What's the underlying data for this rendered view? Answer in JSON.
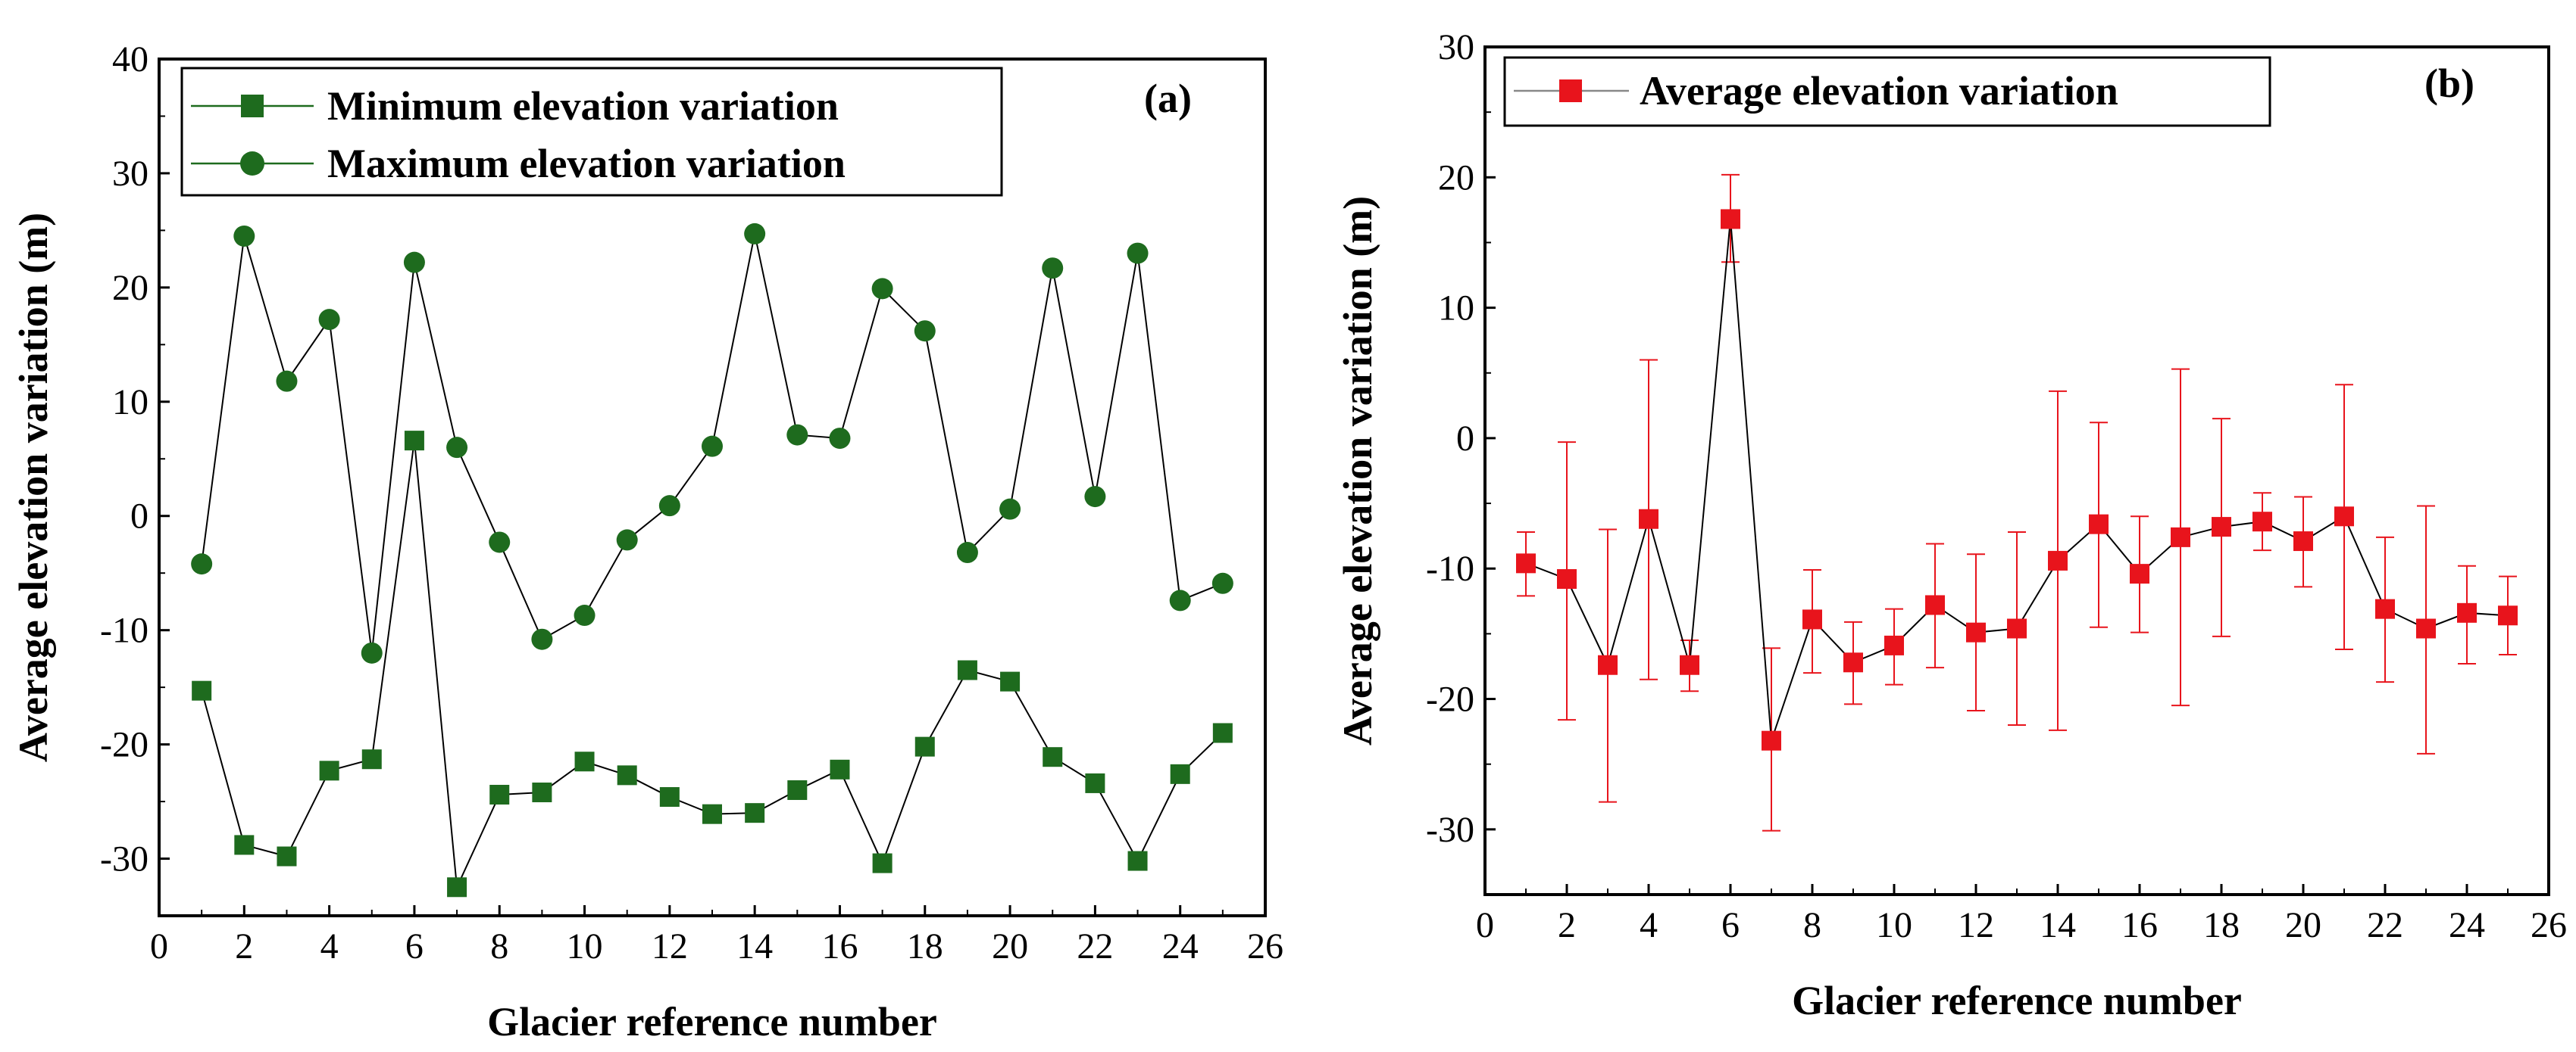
{
  "chart_data": [
    {
      "type": "line",
      "panel_label": "(a)",
      "title": "",
      "xlabel": "Glacier reference  number",
      "ylabel": "Average elevation variation (m)",
      "xlim": [
        0,
        26
      ],
      "ylim": [
        -35,
        40
      ],
      "xticks": [
        "0",
        "2",
        "4",
        "6",
        "8",
        "10",
        "12",
        "14",
        "16",
        "18",
        "20",
        "22",
        "24",
        "26"
      ],
      "yticks": [
        "-30",
        "-20",
        "-10",
        "0",
        "10",
        "20",
        "30",
        "40"
      ],
      "legend_position": "top-left",
      "x": [
        1,
        2,
        3,
        4,
        5,
        6,
        7,
        8,
        9,
        10,
        11,
        12,
        13,
        14,
        15,
        16,
        17,
        18,
        19,
        20,
        21,
        22,
        23,
        24,
        25
      ],
      "series": [
        {
          "name": "Minimum elevation variation",
          "marker": "square",
          "color": "#1e6b1e",
          "values": [
            -15.3,
            -28.8,
            -29.8,
            -22.3,
            -21.3,
            6.6,
            -32.5,
            -24.4,
            -24.2,
            -21.5,
            -22.7,
            -24.6,
            -26.1,
            -26.0,
            -24.0,
            -22.2,
            -30.4,
            -20.2,
            -13.5,
            -14.5,
            -21.1,
            -23.4,
            -30.2,
            -22.6,
            -19.0
          ]
        },
        {
          "name": "Maximum elevation variation",
          "marker": "circle",
          "color": "#1e6b1e",
          "values": [
            -4.2,
            24.5,
            11.8,
            17.2,
            -12.0,
            22.2,
            6.0,
            -2.3,
            -10.8,
            -8.7,
            -2.1,
            0.9,
            6.1,
            24.7,
            7.1,
            6.8,
            19.9,
            16.2,
            -3.2,
            0.6,
            21.7,
            1.7,
            23.0,
            -7.4,
            -5.9
          ]
        }
      ]
    },
    {
      "type": "line",
      "panel_label": "(b)",
      "title": "",
      "xlabel": "Glacier reference  number",
      "ylabel": "Average elevation variation (m)",
      "xlim": [
        0,
        26
      ],
      "ylim": [
        -35,
        30
      ],
      "xticks": [
        "0",
        "2",
        "4",
        "6",
        "8",
        "10",
        "12",
        "14",
        "16",
        "18",
        "20",
        "22",
        "24",
        "26"
      ],
      "yticks": [
        "-30",
        "-20",
        "-10",
        "0",
        "10",
        "20",
        "30"
      ],
      "legend_position": "top-left",
      "x": [
        1,
        2,
        3,
        4,
        5,
        6,
        7,
        8,
        9,
        10,
        11,
        12,
        13,
        14,
        15,
        16,
        17,
        18,
        19,
        20,
        21,
        22,
        23,
        24,
        25
      ],
      "series": [
        {
          "name": "Average elevation variation",
          "marker": "square",
          "color": "#e8141c",
          "line_color": "#000000",
          "values": [
            -9.6,
            -10.8,
            -17.4,
            -6.2,
            -17.4,
            16.8,
            -23.2,
            -13.9,
            -17.2,
            -15.9,
            -12.8,
            -14.9,
            -14.6,
            -9.4,
            -6.6,
            -10.4,
            -7.6,
            -6.8,
            -6.4,
            -7.9,
            -6.0,
            -13.1,
            -14.6,
            -13.4,
            -13.6
          ],
          "error_upper": [
            -7.2,
            -0.3,
            -7.0,
            6.0,
            -15.5,
            20.2,
            -16.1,
            -10.1,
            -14.1,
            -13.1,
            -8.1,
            -8.9,
            -7.2,
            3.6,
            1.2,
            -6.0,
            5.3,
            1.5,
            -4.2,
            -4.5,
            4.1,
            -7.6,
            -5.2,
            -9.8,
            -10.6
          ],
          "error_lower": [
            -12.1,
            -21.6,
            -27.9,
            -18.5,
            -19.4,
            13.5,
            -30.1,
            -18.0,
            -20.4,
            -18.9,
            -17.6,
            -20.9,
            -22.0,
            -22.4,
            -14.5,
            -14.9,
            -20.5,
            -15.2,
            -8.6,
            -11.4,
            -16.2,
            -18.7,
            -24.2,
            -17.3,
            -16.6
          ]
        }
      ]
    }
  ]
}
